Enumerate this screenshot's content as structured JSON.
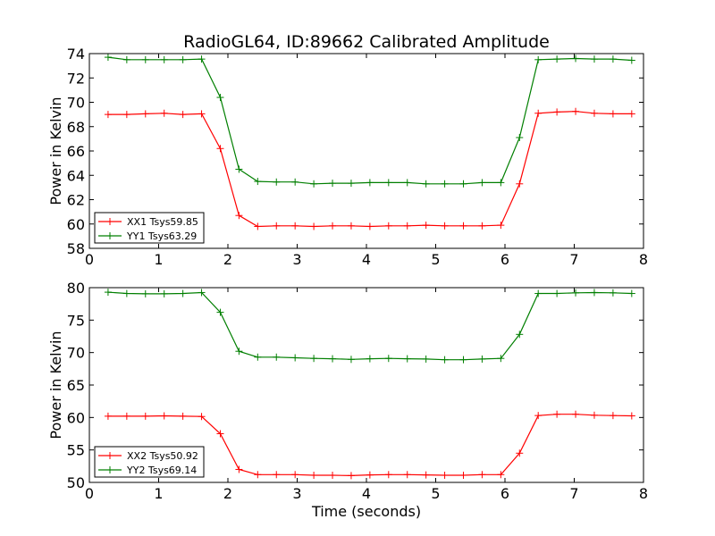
{
  "title": "RadioGL64, ID:89662 Calibrated Amplitude",
  "colors": {
    "red": "#ff0000",
    "green": "#007f00"
  },
  "chart_data": [
    {
      "type": "line",
      "ylabel": "Power in Kelvin",
      "xlabel": "",
      "xlim": [
        0,
        8
      ],
      "ylim": [
        58,
        74
      ],
      "xticks": [
        0,
        1,
        2,
        3,
        4,
        5,
        6,
        7,
        8
      ],
      "yticks": [
        58,
        60,
        62,
        64,
        66,
        68,
        70,
        72,
        74
      ],
      "legend": "lower-left",
      "grid": false,
      "x": [
        0.27,
        0.54,
        0.81,
        1.08,
        1.35,
        1.62,
        1.89,
        2.16,
        2.43,
        2.7,
        2.97,
        3.24,
        3.51,
        3.78,
        4.05,
        4.32,
        4.59,
        4.86,
        5.13,
        5.4,
        5.67,
        5.94,
        6.21,
        6.48,
        6.75,
        7.02,
        7.29,
        7.56,
        7.83
      ],
      "series": [
        {
          "name": "XX1 Tsys59.85",
          "color": "red",
          "values": [
            69.0,
            69.0,
            69.05,
            69.1,
            69.0,
            69.05,
            66.2,
            60.7,
            59.8,
            59.85,
            59.85,
            59.8,
            59.85,
            59.85,
            59.8,
            59.85,
            59.85,
            59.9,
            59.85,
            59.85,
            59.85,
            59.9,
            63.3,
            69.1,
            69.2,
            69.25,
            69.1,
            69.05,
            69.05
          ]
        },
        {
          "name": "YY1 Tsys63.29",
          "color": "green",
          "values": [
            73.7,
            73.5,
            73.5,
            73.5,
            73.5,
            73.55,
            70.4,
            64.5,
            63.5,
            63.45,
            63.45,
            63.3,
            63.35,
            63.35,
            63.4,
            63.4,
            63.4,
            63.3,
            63.3,
            63.3,
            63.4,
            63.4,
            67.1,
            73.5,
            73.55,
            73.6,
            73.55,
            73.55,
            73.45
          ]
        }
      ]
    },
    {
      "type": "line",
      "ylabel": "Power in Kelvin",
      "xlabel": "Time (seconds)",
      "xlim": [
        0,
        8
      ],
      "ylim": [
        50,
        80
      ],
      "xticks": [
        0,
        1,
        2,
        3,
        4,
        5,
        6,
        7,
        8
      ],
      "yticks": [
        50,
        55,
        60,
        65,
        70,
        75,
        80
      ],
      "legend": "lower-left",
      "grid": false,
      "x": [
        0.27,
        0.54,
        0.81,
        1.08,
        1.35,
        1.62,
        1.89,
        2.16,
        2.43,
        2.7,
        2.97,
        3.24,
        3.51,
        3.78,
        4.05,
        4.32,
        4.59,
        4.86,
        5.13,
        5.4,
        5.67,
        5.94,
        6.21,
        6.48,
        6.75,
        7.02,
        7.29,
        7.56,
        7.83
      ],
      "series": [
        {
          "name": "XX2 Tsys50.92",
          "color": "red",
          "values": [
            60.2,
            60.2,
            60.2,
            60.25,
            60.2,
            60.15,
            57.5,
            52.0,
            51.2,
            51.2,
            51.2,
            51.1,
            51.1,
            51.05,
            51.15,
            51.2,
            51.2,
            51.15,
            51.1,
            51.1,
            51.2,
            51.2,
            54.5,
            60.3,
            60.5,
            60.5,
            60.35,
            60.3,
            60.25
          ]
        },
        {
          "name": "YY2 Tsys69.14",
          "color": "green",
          "values": [
            79.3,
            79.1,
            79.05,
            79.05,
            79.1,
            79.25,
            76.2,
            70.2,
            69.3,
            69.3,
            69.2,
            69.1,
            69.05,
            68.95,
            69.05,
            69.1,
            69.05,
            69.0,
            68.9,
            68.9,
            69.0,
            69.1,
            72.8,
            79.1,
            79.1,
            79.2,
            79.25,
            79.2,
            79.1
          ]
        }
      ]
    }
  ]
}
